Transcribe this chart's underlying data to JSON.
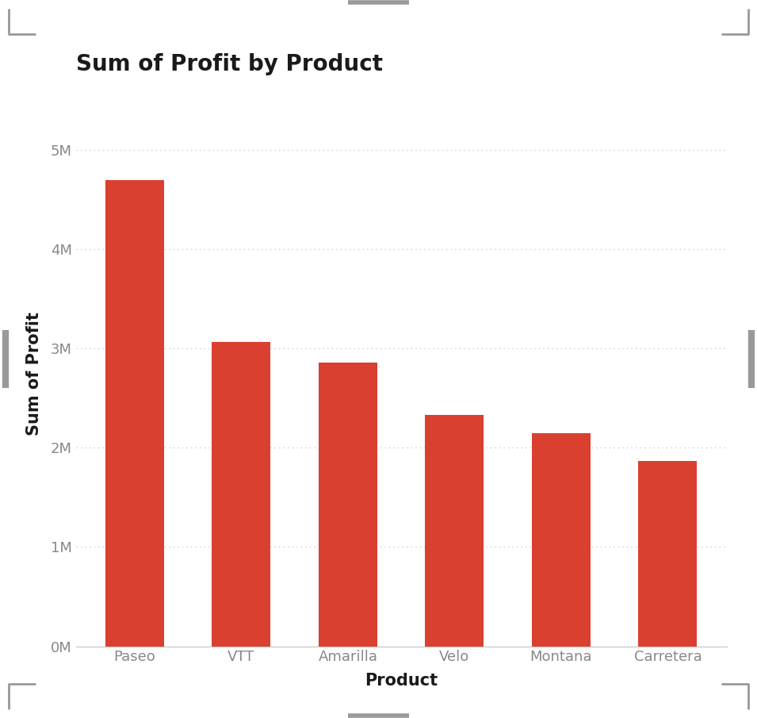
{
  "title": "Sum of Profit by Product",
  "categories": [
    "Paseo",
    "VTT",
    "Amarilla",
    "Velo",
    "Montana",
    "Carretera"
  ],
  "values": [
    4700000,
    3070000,
    2860000,
    2330000,
    2150000,
    1870000
  ],
  "bar_color": "#D94030",
  "background_color": "#FFFFFF",
  "xlabel": "Product",
  "ylabel": "Sum of Profit",
  "ylim": [
    0,
    5500000
  ],
  "ytick_values": [
    0,
    1000000,
    2000000,
    3000000,
    4000000,
    5000000
  ],
  "ytick_labels": [
    "0M",
    "1M",
    "2M",
    "3M",
    "4M",
    "5M"
  ],
  "title_fontsize": 20,
  "axis_label_fontsize": 15,
  "tick_fontsize": 13,
  "grid_color": "#CCCCCC",
  "handle_color": "#999999",
  "title_color": "#1a1a1a",
  "axis_label_color": "#1a1a1a",
  "tick_color": "#888888"
}
